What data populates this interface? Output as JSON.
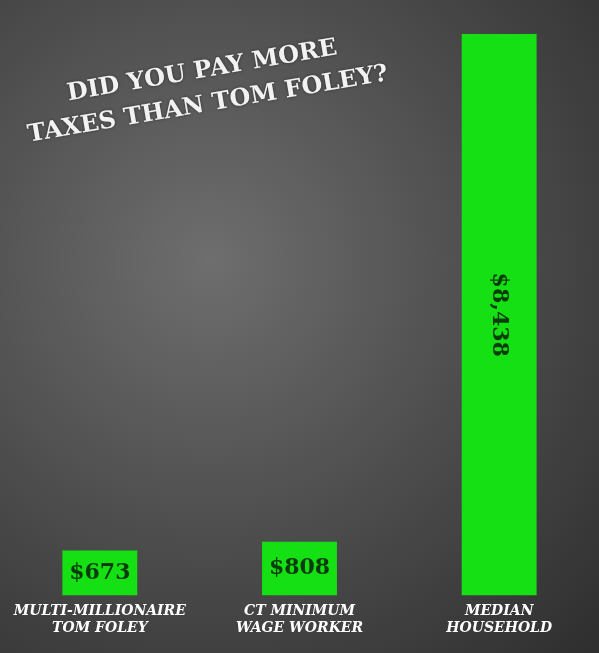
{
  "chart_data": {
    "type": "bar",
    "title": "DID YOU PAY MORE\nTAXES THAN TOM FOLEY?",
    "categories": [
      "MULTI-MILLIONAIRE\nTOM FOLEY",
      "CT MINIMUM\nWAGE WORKER",
      "MEDIAN\nHOUSEHOLD"
    ],
    "values": [
      673,
      808,
      8438
    ],
    "value_labels": [
      "$673",
      "$808",
      "$8,438"
    ],
    "color": "#14e014",
    "ylim": [
      0,
      8438
    ],
    "grid": false,
    "data_labels": true,
    "tick_labels": "x"
  }
}
